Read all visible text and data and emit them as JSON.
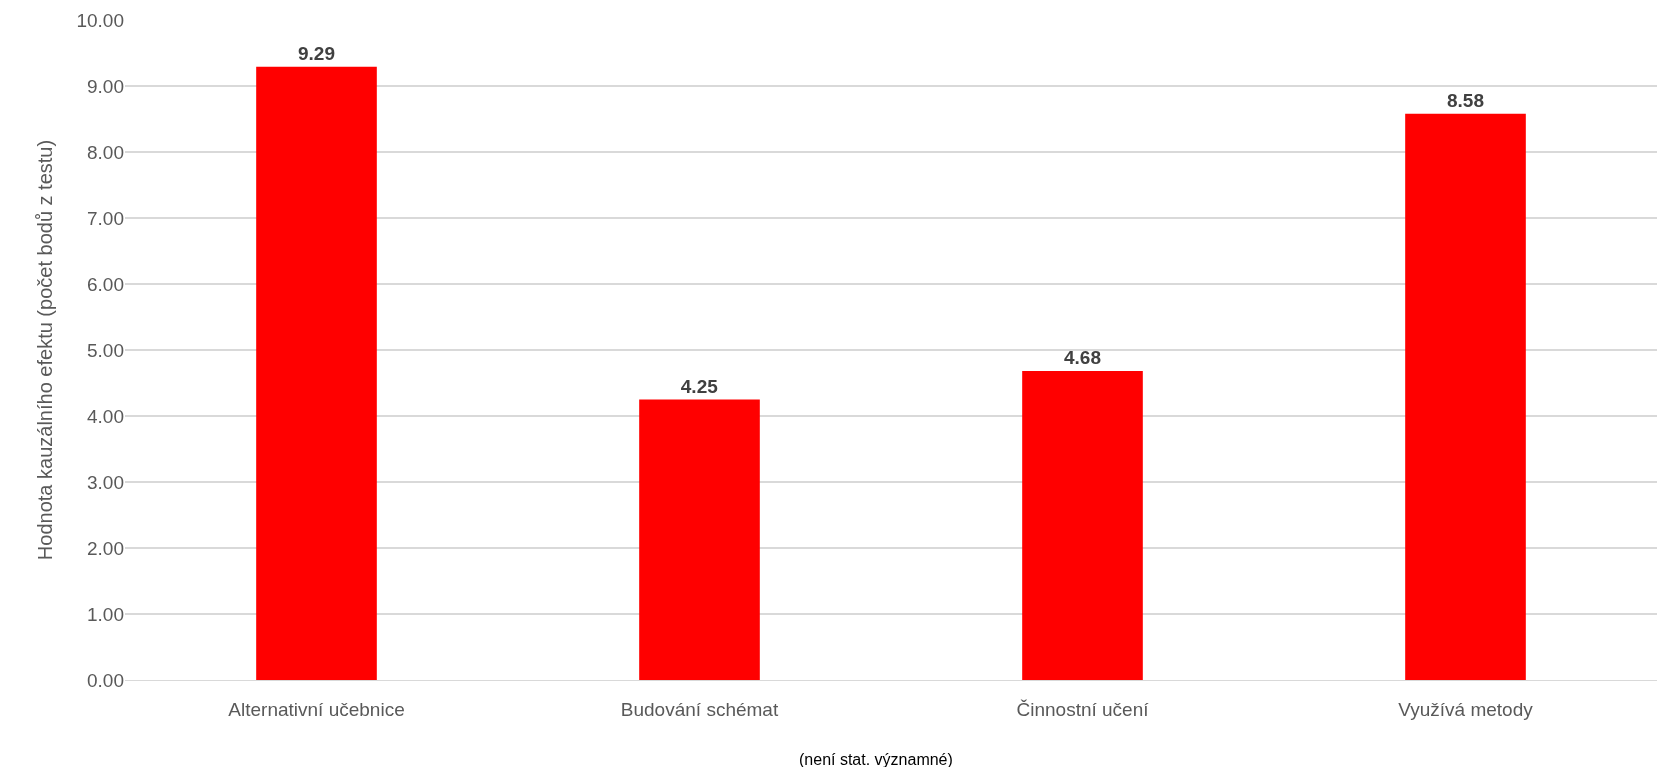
{
  "chart_data": {
    "type": "bar",
    "categories": [
      "Alternativní učebnice",
      "Budování schémat",
      "Činnostní učení",
      "Využívá metody"
    ],
    "values": [
      9.29,
      4.25,
      4.68,
      8.58
    ],
    "color": "#ff0000",
    "ylabel": "Hodnota kauzálního efektu (počet bodů z testu)",
    "annotations": [
      "(není stat. významné)"
    ],
    "ylim": [
      0,
      10
    ],
    "yticks": [
      {
        "value": 0,
        "label": "0.00"
      },
      {
        "value": 1,
        "label": "1.00"
      },
      {
        "value": 2,
        "label": "2.00"
      },
      {
        "value": 3,
        "label": "3.00"
      },
      {
        "value": 4,
        "label": "4.00"
      },
      {
        "value": 5,
        "label": "5.00"
      },
      {
        "value": 6,
        "label": "6.00"
      },
      {
        "value": 7,
        "label": "7.00"
      },
      {
        "value": 8,
        "label": "8.00"
      },
      {
        "value": 9,
        "label": "9.00"
      },
      {
        "value": 10,
        "label": "10.00"
      }
    ],
    "grid": "y",
    "data_labels": true
  }
}
